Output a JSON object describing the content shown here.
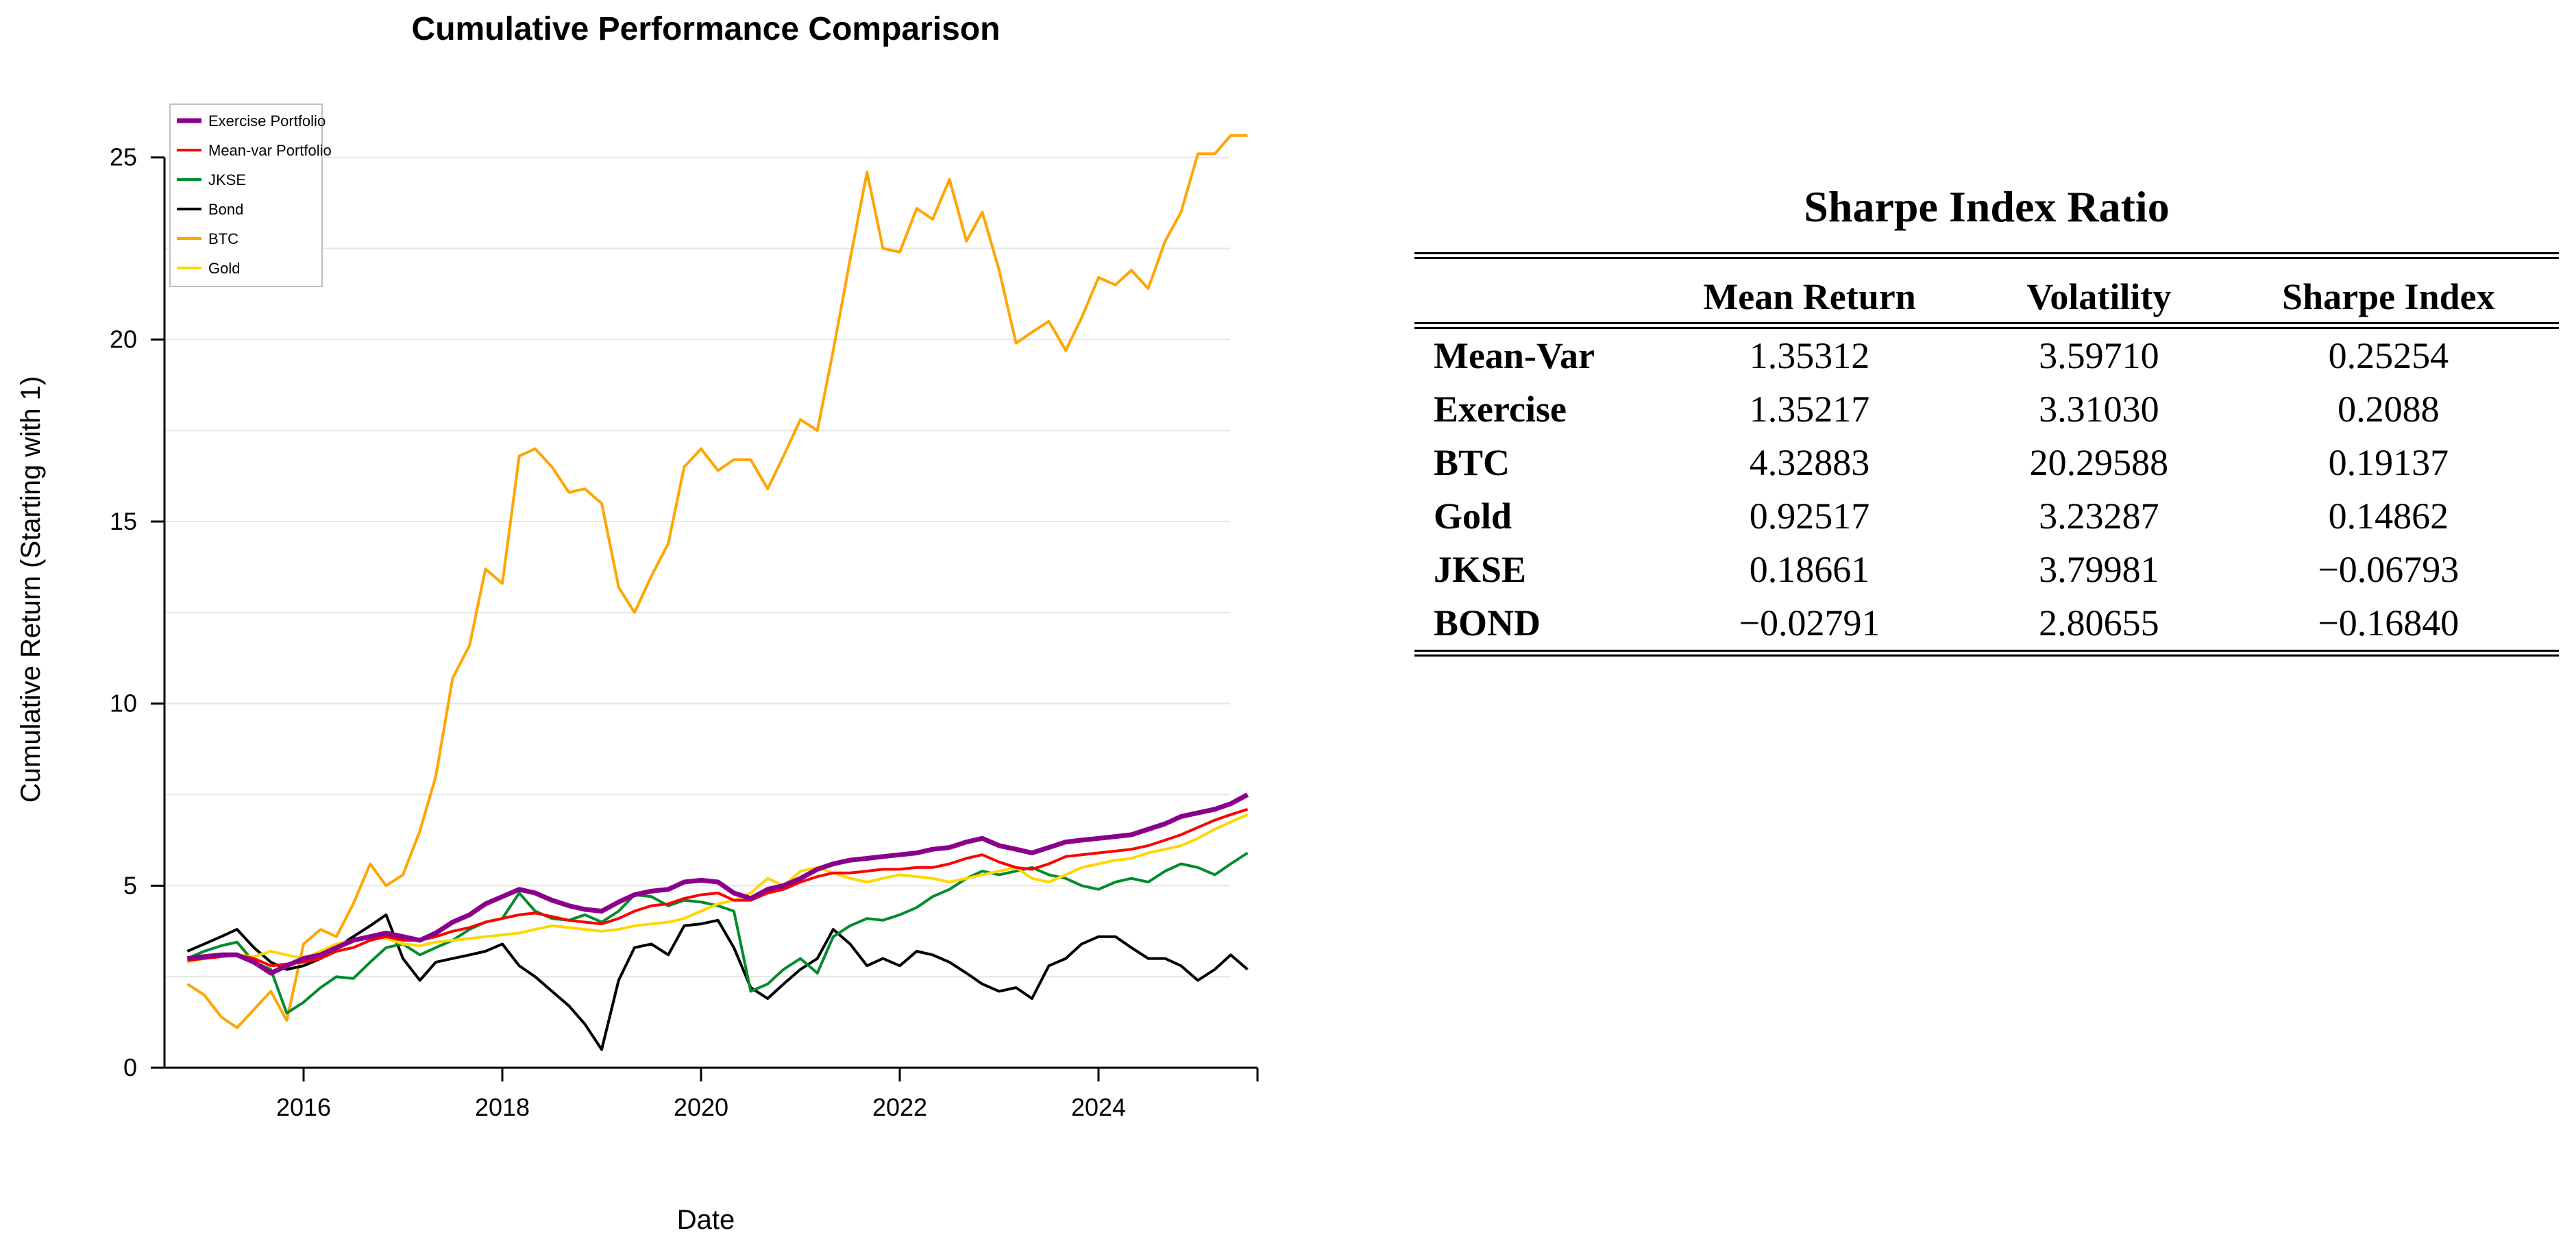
{
  "chart_data": [
    {
      "type": "line",
      "title": "Cumulative Performance Comparison",
      "xlabel": "Date",
      "ylabel": "Cumulative Return (Starting with 1)",
      "xlim": [
        2014.6,
        2025.6
      ],
      "ylim": [
        0,
        26.5
      ],
      "xticks": [
        2016,
        2018,
        2020,
        2022,
        2024
      ],
      "yticks": [
        0,
        5,
        10,
        15,
        20,
        25
      ],
      "grid": true,
      "legend_position": "top-left",
      "x": [
        2014.83,
        2015.0,
        2015.17,
        2015.33,
        2015.5,
        2015.67,
        2015.83,
        2016.0,
        2016.17,
        2016.33,
        2016.5,
        2016.67,
        2016.83,
        2017.0,
        2017.17,
        2017.33,
        2017.5,
        2017.67,
        2017.83,
        2018.0,
        2018.17,
        2018.33,
        2018.5,
        2018.67,
        2018.83,
        2019.0,
        2019.17,
        2019.33,
        2019.5,
        2019.67,
        2019.83,
        2020.0,
        2020.17,
        2020.33,
        2020.5,
        2020.67,
        2020.83,
        2021.0,
        2021.17,
        2021.33,
        2021.5,
        2021.67,
        2021.83,
        2022.0,
        2022.17,
        2022.33,
        2022.5,
        2022.67,
        2022.83,
        2023.0,
        2023.17,
        2023.33,
        2023.5,
        2023.67,
        2023.83,
        2024.0,
        2024.17,
        2024.33,
        2024.5,
        2024.67,
        2024.83,
        2025.0,
        2025.17,
        2025.33,
        2025.5
      ],
      "series": [
        {
          "name": "Exercise Portfolio",
          "color": "#8B008B",
          "stroke_width": 7,
          "values": [
            3.0,
            3.05,
            3.1,
            3.1,
            2.9,
            2.6,
            2.8,
            3.0,
            3.1,
            3.3,
            3.5,
            3.6,
            3.7,
            3.6,
            3.5,
            3.7,
            4.0,
            4.2,
            4.5,
            4.7,
            4.9,
            4.8,
            4.6,
            4.45,
            4.35,
            4.3,
            4.55,
            4.75,
            4.85,
            4.9,
            5.1,
            5.15,
            5.1,
            4.8,
            4.65,
            4.9,
            5.0,
            5.2,
            5.45,
            5.6,
            5.7,
            5.75,
            5.8,
            5.85,
            5.9,
            6.0,
            6.05,
            6.2,
            6.3,
            6.1,
            6.0,
            5.9,
            6.05,
            6.2,
            6.25,
            6.3,
            6.35,
            6.4,
            6.55,
            6.7,
            6.9,
            7.0,
            7.1,
            7.25,
            7.5
          ]
        },
        {
          "name": "Mean-var Portfolio",
          "color": "#FF0000",
          "stroke_width": 4,
          "values": [
            2.95,
            3.0,
            3.05,
            3.1,
            3.0,
            2.8,
            2.85,
            2.9,
            3.0,
            3.2,
            3.3,
            3.5,
            3.6,
            3.5,
            3.5,
            3.6,
            3.75,
            3.85,
            4.0,
            4.1,
            4.2,
            4.25,
            4.15,
            4.05,
            4.0,
            3.95,
            4.1,
            4.3,
            4.45,
            4.5,
            4.65,
            4.75,
            4.8,
            4.6,
            4.6,
            4.8,
            4.9,
            5.1,
            5.25,
            5.35,
            5.35,
            5.4,
            5.45,
            5.45,
            5.5,
            5.5,
            5.6,
            5.75,
            5.85,
            5.65,
            5.5,
            5.45,
            5.6,
            5.8,
            5.85,
            5.9,
            5.95,
            6.0,
            6.1,
            6.25,
            6.4,
            6.6,
            6.8,
            6.95,
            7.1
          ]
        },
        {
          "name": "JKSE",
          "color": "#008B2E",
          "stroke_width": 4,
          "values": [
            3.0,
            3.2,
            3.35,
            3.45,
            2.9,
            2.7,
            1.5,
            1.8,
            2.2,
            2.5,
            2.45,
            2.9,
            3.3,
            3.4,
            3.1,
            3.3,
            3.5,
            3.8,
            4.0,
            4.1,
            4.8,
            4.3,
            4.1,
            4.05,
            4.2,
            4.0,
            4.3,
            4.75,
            4.7,
            4.45,
            4.6,
            4.55,
            4.45,
            4.3,
            2.1,
            2.3,
            2.7,
            3.0,
            2.6,
            3.6,
            3.9,
            4.1,
            4.05,
            4.2,
            4.4,
            4.7,
            4.9,
            5.2,
            5.4,
            5.3,
            5.4,
            5.5,
            5.3,
            5.2,
            5.0,
            4.9,
            5.1,
            5.2,
            5.1,
            5.4,
            5.6,
            5.5,
            5.3,
            5.6,
            5.9
          ]
        },
        {
          "name": "Bond",
          "color": "#000000",
          "stroke_width": 4,
          "values": [
            3.2,
            3.4,
            3.6,
            3.8,
            3.3,
            2.9,
            2.7,
            2.8,
            3.0,
            3.3,
            3.6,
            3.9,
            4.2,
            3.0,
            2.4,
            2.9,
            3.0,
            3.1,
            3.2,
            3.4,
            2.8,
            2.5,
            2.1,
            1.7,
            1.2,
            0.5,
            2.4,
            3.3,
            3.4,
            3.1,
            3.9,
            3.95,
            4.05,
            3.3,
            2.2,
            1.9,
            2.3,
            2.7,
            3.0,
            3.8,
            3.4,
            2.8,
            3.0,
            2.8,
            3.2,
            3.1,
            2.9,
            2.6,
            2.3,
            2.1,
            2.2,
            1.9,
            2.8,
            3.0,
            3.4,
            3.6,
            3.6,
            3.3,
            3.0,
            3.0,
            2.8,
            2.4,
            2.7,
            3.1,
            2.7
          ]
        },
        {
          "name": "BTC",
          "color": "#FFA500",
          "stroke_width": 4,
          "values": [
            2.3,
            2.0,
            1.4,
            1.1,
            1.6,
            2.1,
            1.3,
            3.4,
            3.8,
            3.6,
            4.5,
            5.6,
            5.0,
            5.3,
            6.5,
            8.0,
            10.7,
            11.6,
            13.7,
            13.3,
            16.8,
            17.0,
            16.5,
            15.8,
            15.9,
            15.5,
            13.2,
            12.5,
            13.5,
            14.4,
            16.5,
            17.0,
            16.4,
            16.7,
            16.7,
            15.9,
            16.8,
            17.8,
            17.5,
            19.7,
            22.2,
            24.6,
            22.5,
            22.4,
            23.6,
            23.3,
            24.4,
            22.7,
            23.5,
            21.9,
            19.9,
            20.2,
            20.5,
            19.7,
            20.6,
            21.7,
            21.5,
            21.9,
            21.4,
            22.7,
            23.5,
            25.1,
            25.1,
            25.6,
            25.6
          ]
        },
        {
          "name": "Gold",
          "color": "#FFD700",
          "stroke_width": 4,
          "values": [
            2.9,
            3.0,
            3.1,
            3.1,
            3.05,
            3.2,
            3.1,
            3.0,
            3.2,
            3.4,
            3.5,
            3.6,
            3.55,
            3.4,
            3.35,
            3.45,
            3.5,
            3.55,
            3.6,
            3.65,
            3.7,
            3.8,
            3.9,
            3.85,
            3.8,
            3.75,
            3.8,
            3.9,
            3.95,
            4.0,
            4.1,
            4.3,
            4.5,
            4.6,
            4.8,
            5.2,
            5.0,
            5.4,
            5.5,
            5.35,
            5.2,
            5.1,
            5.2,
            5.3,
            5.25,
            5.2,
            5.1,
            5.2,
            5.3,
            5.4,
            5.5,
            5.2,
            5.1,
            5.3,
            5.5,
            5.6,
            5.7,
            5.75,
            5.9,
            6.0,
            6.1,
            6.3,
            6.55,
            6.75,
            6.95
          ]
        }
      ]
    },
    {
      "type": "table",
      "title": "Sharpe Index Ratio",
      "columns": [
        "",
        "Mean Return",
        "Volatility",
        "Sharpe Index"
      ],
      "rows": [
        [
          "Mean-Var",
          "1.35312",
          "3.59710",
          "0.25254"
        ],
        [
          "Exercise",
          "1.35217",
          "3.31030",
          "0.2088"
        ],
        [
          "BTC",
          "4.32883",
          "20.29588",
          "0.19137"
        ],
        [
          "Gold",
          "0.92517",
          "3.23287",
          "0.14862"
        ],
        [
          "JKSE",
          "0.18661",
          "3.79981",
          "−0.06793"
        ],
        [
          "BOND",
          "−0.02791",
          "2.80655",
          "−0.16840"
        ]
      ]
    }
  ]
}
